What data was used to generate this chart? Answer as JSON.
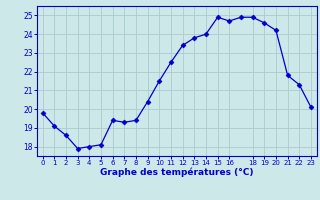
{
  "x": [
    0,
    1,
    2,
    3,
    4,
    5,
    6,
    7,
    8,
    9,
    10,
    11,
    12,
    13,
    14,
    15,
    16,
    17,
    18,
    19,
    20,
    21,
    22,
    23
  ],
  "y": [
    19.8,
    19.1,
    18.6,
    17.9,
    18.0,
    18.1,
    19.4,
    19.3,
    19.4,
    20.4,
    21.5,
    22.5,
    23.4,
    23.8,
    24.0,
    24.9,
    24.7,
    24.9,
    24.9,
    24.6,
    24.2,
    21.8,
    21.3,
    20.1
  ],
  "line_color": "#0000cc",
  "marker": "D",
  "marker_size": 2.5,
  "bg_color": "#cce8e8",
  "grid_color": "#aacccc",
  "xlabel": "Graphe des températures (°C)",
  "xlabel_color": "#0000cc",
  "tick_color": "#0000cc",
  "xlim": [
    -0.5,
    23.5
  ],
  "ylim": [
    17.5,
    25.5
  ],
  "yticks": [
    18,
    19,
    20,
    21,
    22,
    23,
    24,
    25
  ],
  "xticks": [
    0,
    1,
    2,
    3,
    4,
    5,
    6,
    7,
    8,
    9,
    10,
    11,
    12,
    13,
    14,
    15,
    16,
    18,
    19,
    20,
    21,
    22,
    23
  ],
  "xtick_labels": [
    "0",
    "1",
    "2",
    "3",
    "4",
    "5",
    "6",
    "7",
    "8",
    "9",
    "10",
    "11",
    "12",
    "13",
    "14",
    "15",
    "16",
    "18",
    "19",
    "20",
    "21",
    "22",
    "23"
  ]
}
